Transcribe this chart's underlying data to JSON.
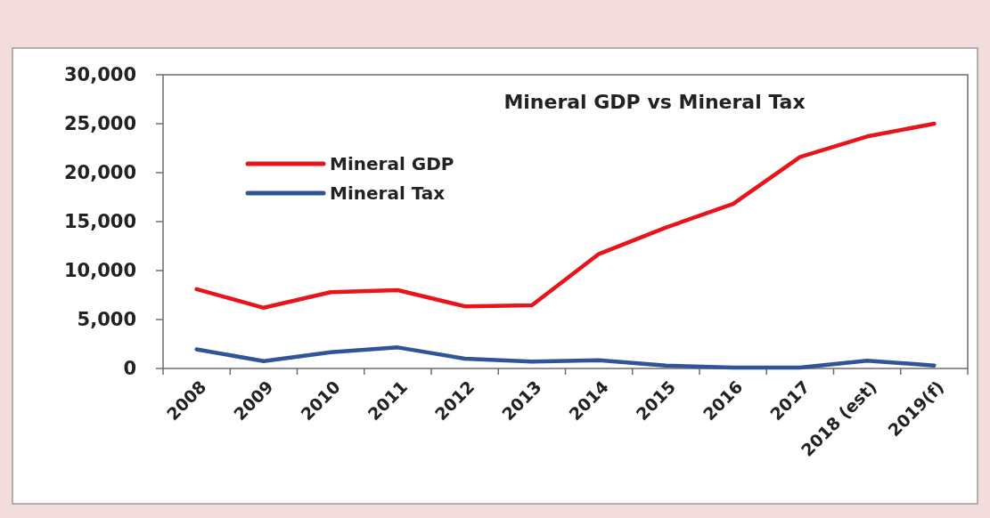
{
  "chart_data": {
    "type": "line",
    "title": "Mineral GDP vs Mineral Tax",
    "categories": [
      "2008",
      "2009",
      "2010",
      "2011",
      "2012",
      "2013",
      "2014",
      "2015",
      "2016",
      "2017",
      "2018 (est)",
      "2019(f)"
    ],
    "series": [
      {
        "name": "Mineral GDP",
        "color": "#e8141c",
        "values": [
          8100,
          6200,
          7800,
          8000,
          6350,
          6450,
          11700,
          14400,
          16800,
          21600,
          23700,
          25000
        ]
      },
      {
        "name": "Mineral Tax",
        "color": "#2f5597",
        "values": [
          1950,
          750,
          1650,
          2150,
          1000,
          700,
          850,
          300,
          100,
          100,
          800,
          300
        ]
      }
    ],
    "ylim": [
      0,
      30000
    ],
    "yticks": [
      {
        "value": 0,
        "label": "0"
      },
      {
        "value": 5000,
        "label": "5,000"
      },
      {
        "value": 10000,
        "label": "10,000"
      },
      {
        "value": 15000,
        "label": "15,000"
      },
      {
        "value": 20000,
        "label": "20,000"
      },
      {
        "value": 25000,
        "label": "25,000"
      },
      {
        "value": 30000,
        "label": "30,000"
      }
    ],
    "legend": "top left",
    "grid": false,
    "marker": "none",
    "line_style": "solid"
  }
}
